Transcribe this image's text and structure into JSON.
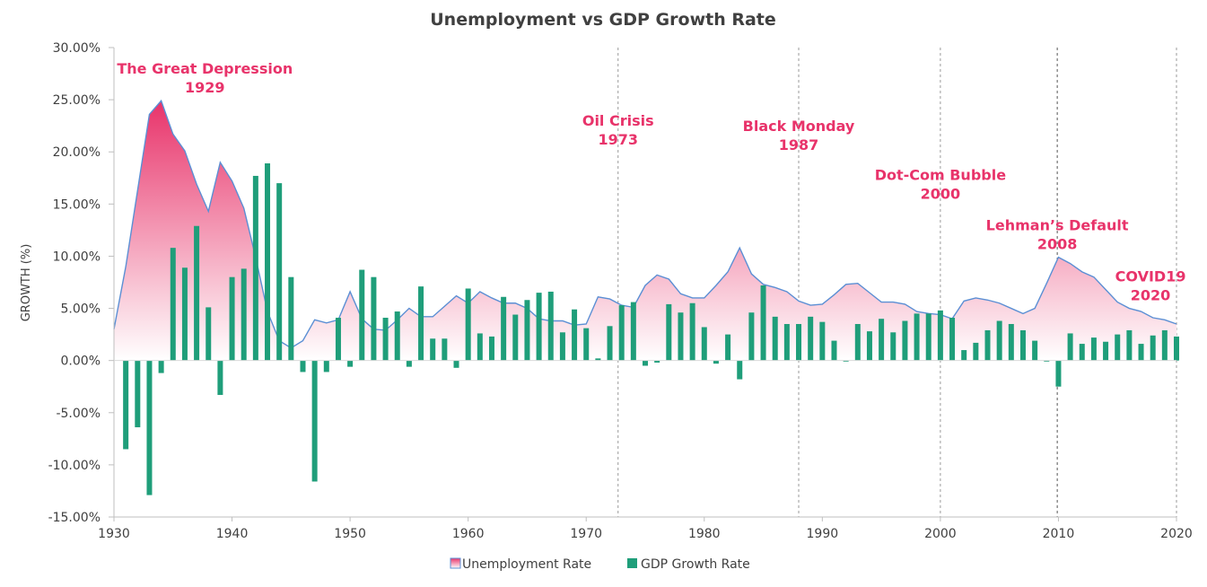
{
  "chart_data": {
    "type": "bar",
    "title": "Unemployment vs GDP Growth Rate",
    "xlabel": "",
    "ylabel": "GROWTH (%)",
    "xlim": [
      1930,
      2020
    ],
    "ylim": [
      -15,
      30
    ],
    "x_ticks": [
      "1930",
      "1940",
      "1950",
      "1960",
      "1970",
      "1980",
      "1990",
      "2000",
      "2010",
      "2020"
    ],
    "y_ticks": [
      "30.00%",
      "25.00%",
      "20.00%",
      "15.00%",
      "10.00%",
      "5.00%",
      "0.00%",
      "-5.00%",
      "-10.00%",
      "-15.00%"
    ],
    "grid": false,
    "legend_position": "bottom",
    "series": [
      {
        "name": "Unemployment Rate",
        "type": "area",
        "color": "#e8336a",
        "line_color": "#5b8fd4",
        "x": [
          1930,
          1931,
          1932,
          1933,
          1934,
          1935,
          1936,
          1937,
          1938,
          1939,
          1940,
          1941,
          1942,
          1943,
          1944,
          1945,
          1946,
          1947,
          1948,
          1949,
          1950,
          1951,
          1952,
          1953,
          1954,
          1955,
          1956,
          1957,
          1958,
          1959,
          1960,
          1961,
          1962,
          1963,
          1964,
          1965,
          1966,
          1967,
          1968,
          1969,
          1970,
          1971,
          1972,
          1973,
          1974,
          1975,
          1976,
          1977,
          1978,
          1979,
          1980,
          1981,
          1982,
          1983,
          1984,
          1985,
          1986,
          1987,
          1988,
          1989,
          1990,
          1991,
          1992,
          1993,
          1994,
          1995,
          1996,
          1997,
          1998,
          1999,
          2000,
          2001,
          2002,
          2003,
          2004,
          2005,
          2006,
          2007,
          2008,
          2009,
          2010,
          2011,
          2012,
          2013,
          2014,
          2015,
          2016,
          2017,
          2018,
          2019,
          2020
        ],
        "values": [
          3.0,
          9.0,
          16.3,
          23.6,
          24.9,
          21.7,
          20.1,
          16.9,
          14.3,
          19.0,
          17.2,
          14.6,
          9.9,
          4.7,
          1.9,
          1.2,
          1.9,
          3.9,
          3.6,
          3.9,
          6.6,
          4.0,
          3.0,
          2.9,
          3.9,
          5.0,
          4.2,
          4.2,
          5.2,
          6.2,
          5.5,
          6.6,
          6.0,
          5.5,
          5.5,
          5.0,
          4.0,
          3.8,
          3.8,
          3.4,
          3.5,
          6.1,
          5.9,
          5.3,
          5.1,
          7.2,
          8.2,
          7.8,
          6.4,
          6.0,
          6.0,
          7.2,
          8.5,
          10.8,
          8.3,
          7.3,
          7.0,
          6.6,
          5.7,
          5.3,
          5.4,
          6.3,
          7.3,
          7.4,
          6.5,
          5.6,
          5.6,
          5.4,
          4.7,
          4.5,
          4.4,
          4.0,
          5.7,
          6.0,
          5.8,
          5.5,
          5.0,
          4.5,
          5.0,
          7.4,
          9.9,
          9.3,
          8.5,
          8.0,
          6.8,
          5.6,
          5.0,
          4.7,
          4.1,
          3.9,
          3.5
        ]
      },
      {
        "name": "GDP Growth Rate",
        "type": "bar",
        "color": "#1f9e7a",
        "x": [
          1931,
          1932,
          1933,
          1934,
          1935,
          1936,
          1937,
          1938,
          1939,
          1940,
          1941,
          1942,
          1943,
          1944,
          1945,
          1946,
          1947,
          1948,
          1949,
          1950,
          1951,
          1952,
          1953,
          1954,
          1955,
          1956,
          1957,
          1958,
          1959,
          1960,
          1961,
          1962,
          1963,
          1964,
          1965,
          1966,
          1967,
          1968,
          1969,
          1970,
          1971,
          1972,
          1973,
          1974,
          1975,
          1976,
          1977,
          1978,
          1979,
          1980,
          1981,
          1982,
          1983,
          1984,
          1985,
          1986,
          1987,
          1988,
          1989,
          1990,
          1991,
          1992,
          1993,
          1994,
          1995,
          1996,
          1997,
          1998,
          1999,
          2000,
          2001,
          2002,
          2003,
          2004,
          2005,
          2006,
          2007,
          2008,
          2009,
          2010,
          2011,
          2012,
          2013,
          2014,
          2015,
          2016,
          2017,
          2018,
          2019,
          2020
        ],
        "values": [
          -8.5,
          -6.4,
          -12.9,
          -1.2,
          10.8,
          8.9,
          12.9,
          5.1,
          -3.3,
          8.0,
          8.8,
          17.7,
          18.9,
          17.0,
          8.0,
          -1.1,
          -11.6,
          -1.1,
          4.1,
          -0.6,
          8.7,
          8.0,
          4.1,
          4.7,
          -0.6,
          7.1,
          2.1,
          2.1,
          -0.7,
          6.9,
          2.6,
          2.3,
          6.1,
          4.4,
          5.8,
          6.5,
          6.6,
          2.7,
          4.9,
          3.1,
          0.2,
          3.3,
          5.3,
          5.6,
          -0.5,
          -0.2,
          5.4,
          4.6,
          5.5,
          3.2,
          -0.3,
          2.5,
          -1.8,
          4.6,
          7.2,
          4.2,
          3.5,
          3.5,
          4.2,
          3.7,
          1.9,
          -0.1,
          3.5,
          2.8,
          4.0,
          2.7,
          3.8,
          4.5,
          4.5,
          4.8,
          4.1,
          1.0,
          1.7,
          2.9,
          3.8,
          3.5,
          2.9,
          1.9,
          -0.1,
          -2.5,
          2.6,
          1.6,
          2.2,
          1.8,
          2.5,
          2.9,
          1.6,
          2.4,
          2.9,
          2.3
        ]
      }
    ],
    "events": [
      {
        "name": "The Great Depression",
        "year_label": "1929",
        "line_x": null,
        "label_x": 1937.7,
        "label_y": 27.5
      },
      {
        "name": "Oil Crisis",
        "year_label": "1973",
        "line_x": 1972.7,
        "label_x": 1972.7,
        "label_y": 22.5
      },
      {
        "name": "Black Monday",
        "year_label": "1987",
        "line_x": 1988.0,
        "label_x": 1988.0,
        "label_y": 22.0
      },
      {
        "name": "Dot-Com Bubble",
        "year_label": "2000",
        "line_x": 2000.0,
        "label_x": 2000.0,
        "label_y": 17.3
      },
      {
        "name": "Lehman’s Default",
        "year_label": "2008",
        "line_x": 2009.9,
        "label_x": 2009.9,
        "label_y": 12.5
      },
      {
        "name": "COVID19",
        "year_label": "2020",
        "line_x": 2020.0,
        "label_x": 2017.8,
        "label_y": 7.6
      }
    ]
  }
}
